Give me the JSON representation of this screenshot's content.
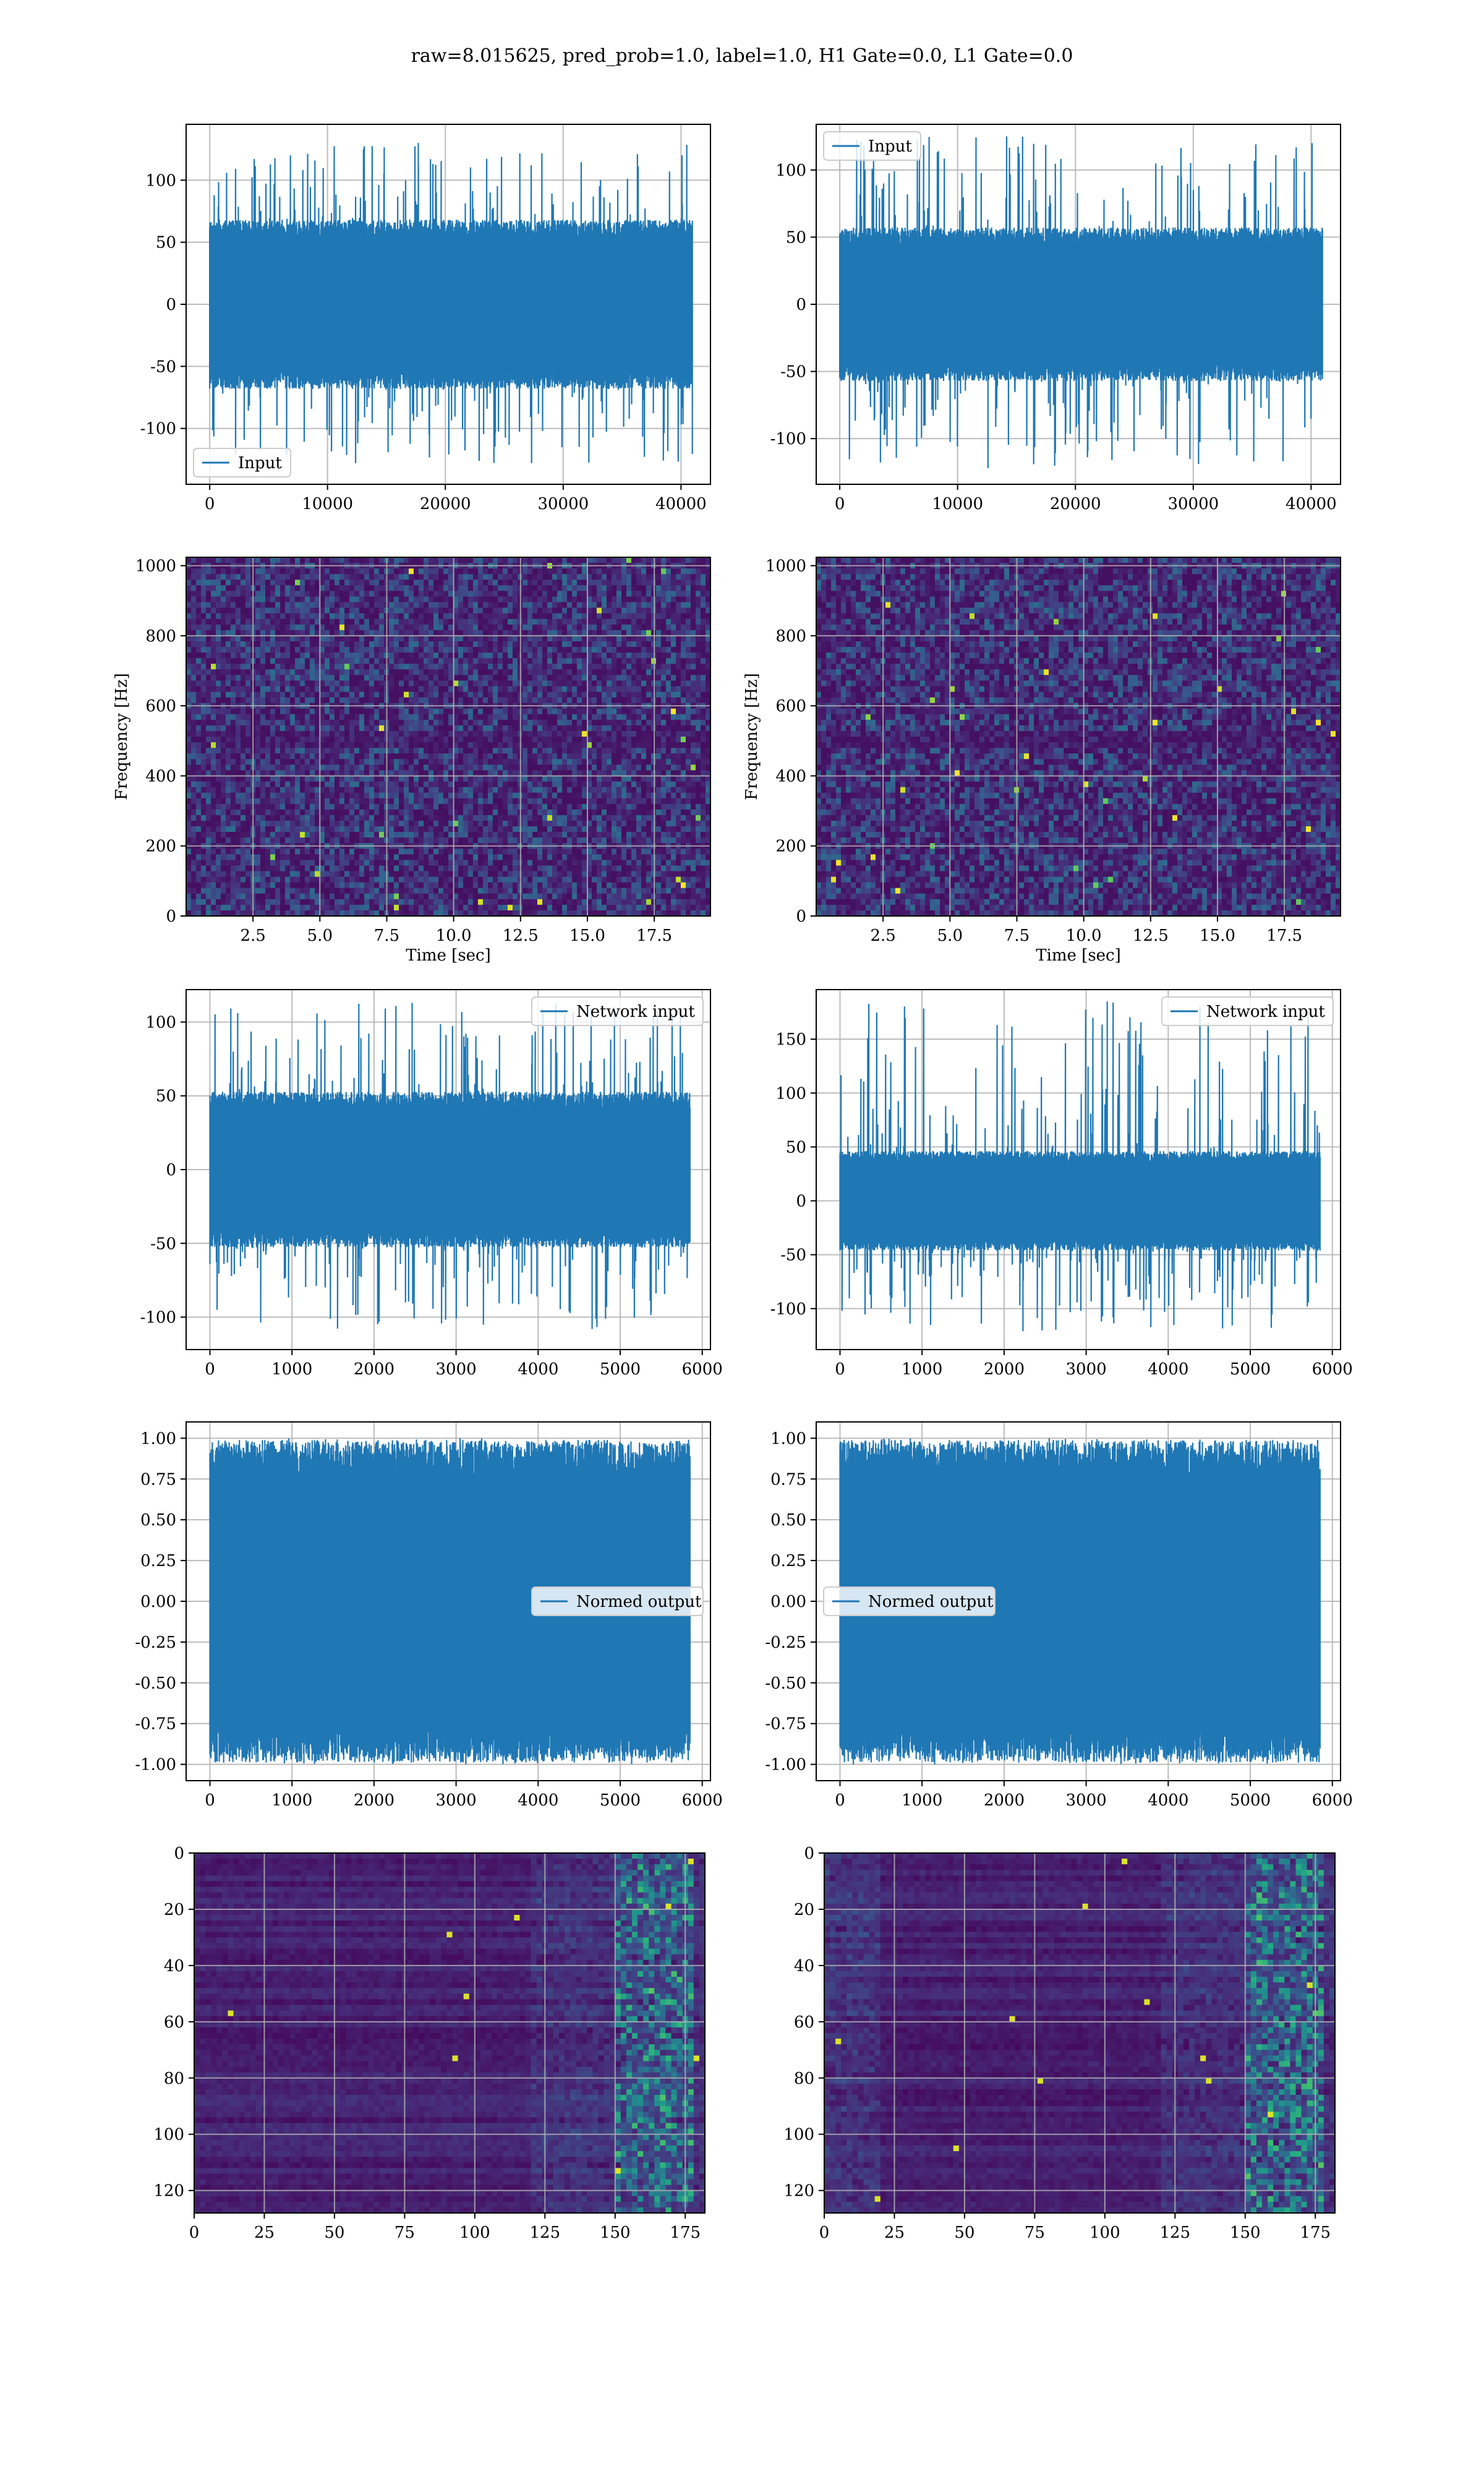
{
  "figure": {
    "suptitle": "raw=8.015625, pred_prob=1.0, label=1.0, H1 Gate=0.0, L1 Gate=0.0"
  },
  "colors": {
    "line": "#1f77b4",
    "grid": "#b0b0b0",
    "viridis_dark": "#440154",
    "viridis_mid": "#21918c",
    "viridis_bright": "#fde725"
  },
  "chart_data": [
    {
      "id": "row1-left",
      "type": "line",
      "series": [
        {
          "name": "Input"
        }
      ],
      "legend": "lower-left",
      "x_ticks": [
        0,
        10000,
        20000,
        30000,
        40000
      ],
      "y_ticks": [
        -100,
        -50,
        0,
        50,
        100
      ],
      "xlim": [
        -2000,
        42500
      ],
      "ylim": [
        -145,
        145
      ],
      "n_points": 40960,
      "envelope": {
        "core": 62,
        "peak_max": 130,
        "peak_min": -128
      },
      "grid": true
    },
    {
      "id": "row1-right",
      "type": "line",
      "series": [
        {
          "name": "Input"
        }
      ],
      "legend": "upper-left",
      "x_ticks": [
        0,
        10000,
        20000,
        30000,
        40000
      ],
      "y_ticks": [
        -100,
        -50,
        0,
        50,
        100
      ],
      "xlim": [
        -2000,
        42500
      ],
      "ylim": [
        -134,
        134
      ],
      "n_points": 40960,
      "envelope": {
        "core": 52,
        "peak_max": 125,
        "peak_min": -122
      },
      "grid": true
    },
    {
      "id": "row2-left",
      "type": "heatmap",
      "xlabel": "Time [sec]",
      "ylabel": "Frequency [Hz]",
      "x_ticks": [
        "2.5",
        "5.0",
        "7.5",
        "10.0",
        "12.5",
        "15.0",
        "17.5"
      ],
      "x_tick_values": [
        2.5,
        5.0,
        7.5,
        10.0,
        12.5,
        15.0,
        17.5
      ],
      "y_ticks": [
        0,
        200,
        400,
        600,
        800,
        1000
      ],
      "xlim": [
        0,
        19.6
      ],
      "ylim": [
        0,
        1024
      ],
      "grid": true
    },
    {
      "id": "row2-right",
      "type": "heatmap",
      "xlabel": "Time [sec]",
      "ylabel": "Frequency [Hz]",
      "x_ticks": [
        "2.5",
        "5.0",
        "7.5",
        "10.0",
        "12.5",
        "15.0",
        "17.5"
      ],
      "x_tick_values": [
        2.5,
        5.0,
        7.5,
        10.0,
        12.5,
        15.0,
        17.5
      ],
      "y_ticks": [
        0,
        200,
        400,
        600,
        800,
        1000
      ],
      "xlim": [
        0,
        19.6
      ],
      "ylim": [
        0,
        1024
      ],
      "grid": true
    },
    {
      "id": "row3-left",
      "type": "line",
      "series": [
        {
          "name": "Network input"
        }
      ],
      "legend": "upper-right",
      "x_ticks": [
        0,
        1000,
        2000,
        3000,
        4000,
        5000,
        6000
      ],
      "y_ticks": [
        -100,
        -50,
        0,
        50,
        100
      ],
      "xlim": [
        -290,
        6100
      ],
      "ylim": [
        -122,
        122
      ],
      "n_points": 5850,
      "envelope": {
        "core": 48,
        "peak_max": 113,
        "peak_min": -108
      },
      "grid": true
    },
    {
      "id": "row3-right",
      "type": "line",
      "series": [
        {
          "name": "Network input"
        }
      ],
      "legend": "upper-right",
      "x_ticks": [
        0,
        1000,
        2000,
        3000,
        4000,
        5000,
        6000
      ],
      "y_ticks": [
        -100,
        -50,
        0,
        50,
        100,
        150
      ],
      "xlim": [
        -290,
        6100
      ],
      "ylim": [
        -138,
        196
      ],
      "n_points": 5850,
      "envelope": {
        "core": 42,
        "peak_max": 185,
        "peak_min": -121
      },
      "grid": true
    },
    {
      "id": "row4-left",
      "type": "line",
      "series": [
        {
          "name": "Normed output"
        }
      ],
      "legend": "center-right",
      "x_ticks": [
        0,
        1000,
        2000,
        3000,
        4000,
        5000,
        6000
      ],
      "y_ticks": [
        "-1.00",
        "-0.75",
        "-0.50",
        "-0.25",
        "0.00",
        "0.25",
        "0.50",
        "0.75",
        "1.00"
      ],
      "y_tick_values": [
        -1.0,
        -0.75,
        -0.5,
        -0.25,
        0.0,
        0.25,
        0.5,
        0.75,
        1.0
      ],
      "xlim": [
        -290,
        6100
      ],
      "ylim": [
        -1.1,
        1.1
      ],
      "n_points": 5850,
      "envelope": {
        "core": 0.9,
        "peak_max": 1.0,
        "peak_min": -1.0
      },
      "grid": true
    },
    {
      "id": "row4-right",
      "type": "line",
      "series": [
        {
          "name": "Normed output"
        }
      ],
      "legend": "center-left",
      "x_ticks": [
        0,
        1000,
        2000,
        3000,
        4000,
        5000,
        6000
      ],
      "y_ticks": [
        "-1.00",
        "-0.75",
        "-0.50",
        "-0.25",
        "0.00",
        "0.25",
        "0.50",
        "0.75",
        "1.00"
      ],
      "y_tick_values": [
        -1.0,
        -0.75,
        -0.5,
        -0.25,
        0.0,
        0.25,
        0.5,
        0.75,
        1.0
      ],
      "xlim": [
        -290,
        6100
      ],
      "ylim": [
        -1.1,
        1.1
      ],
      "n_points": 5850,
      "envelope": {
        "core": 0.9,
        "peak_max": 1.0,
        "peak_min": -1.0
      },
      "grid": true
    },
    {
      "id": "row5-left",
      "type": "heatmap",
      "x_ticks": [
        0,
        25,
        50,
        75,
        100,
        125,
        150,
        175
      ],
      "y_ticks": [
        0,
        20,
        40,
        60,
        80,
        100,
        120
      ],
      "xlim": [
        0,
        182
      ],
      "ylim": [
        128,
        0
      ],
      "grid": true
    },
    {
      "id": "row5-right",
      "type": "heatmap",
      "x_ticks": [
        0,
        25,
        50,
        75,
        100,
        125,
        150,
        175
      ],
      "y_ticks": [
        0,
        20,
        40,
        60,
        80,
        100,
        120
      ],
      "xlim": [
        0,
        182
      ],
      "ylim": [
        128,
        0
      ],
      "grid": true
    }
  ]
}
